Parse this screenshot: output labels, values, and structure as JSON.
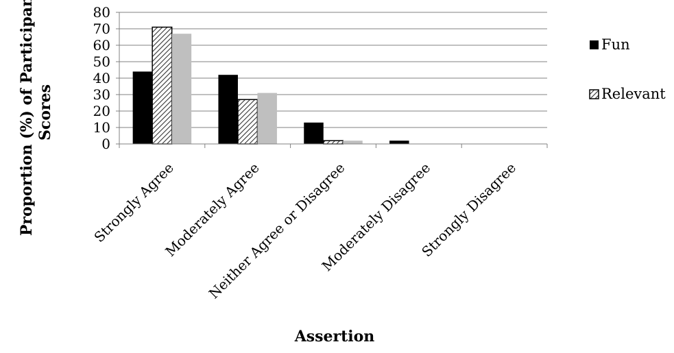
{
  "chart_data": {
    "type": "bar",
    "title": "",
    "xlabel": "Assertion",
    "ylabel_lines": [
      "Proportion (%) of Participant",
      "Scores"
    ],
    "categories": [
      "Strongly Agree",
      "Moderately Agree",
      "Neither Agree or Disagree",
      "Moderately Disagree",
      "Strongly Disagree"
    ],
    "series": [
      {
        "name": "Fun",
        "values": [
          44,
          42,
          13,
          2,
          0
        ],
        "color": "#000000",
        "pattern": "solid"
      },
      {
        "name": "Relevant",
        "values": [
          71,
          27,
          2,
          0,
          0
        ],
        "color": "#888888",
        "pattern": "diagonal-hatch"
      },
      {
        "name": "",
        "values": [
          67,
          31,
          2,
          0,
          0
        ],
        "color": "#bfbfbf",
        "pattern": "solid"
      }
    ],
    "ylim": [
      0,
      80
    ],
    "yticks": [
      0,
      10,
      20,
      30,
      40,
      50,
      60,
      70,
      80
    ],
    "grid": true,
    "legend": "right"
  }
}
